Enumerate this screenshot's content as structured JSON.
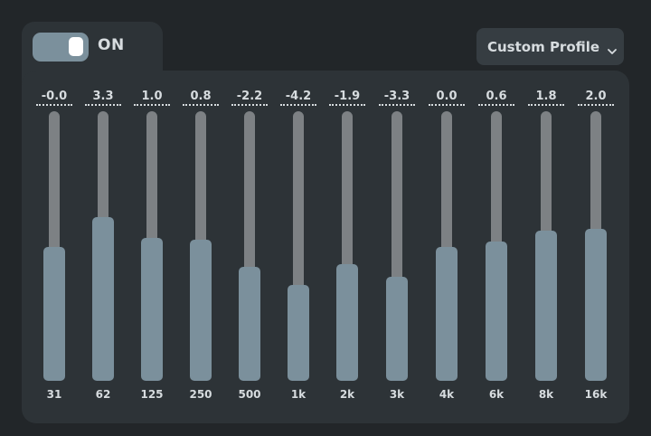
{
  "toggle": {
    "label": "ON",
    "state": "on"
  },
  "profile": {
    "label": "Custom Profile"
  },
  "colors": {
    "background": "#222629",
    "panel": "#2d3337",
    "accent": "#7b909c",
    "track": "#7d8184",
    "text": "#d7dcdf"
  },
  "eq": {
    "range_db": [
      -12,
      12
    ],
    "bands": [
      {
        "freq": "31",
        "value": "-0.0",
        "db": -0.0
      },
      {
        "freq": "62",
        "value": "3.3",
        "db": 3.3
      },
      {
        "freq": "125",
        "value": "1.0",
        "db": 1.0
      },
      {
        "freq": "250",
        "value": "0.8",
        "db": 0.8
      },
      {
        "freq": "500",
        "value": "-2.2",
        "db": -2.2
      },
      {
        "freq": "1k",
        "value": "-4.2",
        "db": -4.2
      },
      {
        "freq": "2k",
        "value": "-1.9",
        "db": -1.9
      },
      {
        "freq": "3k",
        "value": "-3.3",
        "db": -3.3
      },
      {
        "freq": "4k",
        "value": "0.0",
        "db": 0.0
      },
      {
        "freq": "6k",
        "value": "0.6",
        "db": 0.6
      },
      {
        "freq": "8k",
        "value": "1.8",
        "db": 1.8
      },
      {
        "freq": "16k",
        "value": "2.0",
        "db": 2.0
      }
    ]
  }
}
